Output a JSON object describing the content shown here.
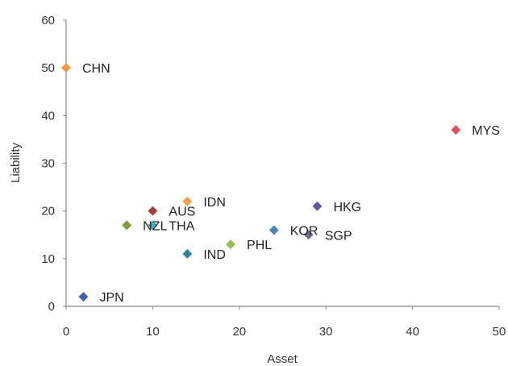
{
  "chart_data": {
    "type": "scatter",
    "title": "",
    "xlabel": "Asset",
    "ylabel": "Liability",
    "xlim": [
      0,
      50
    ],
    "ylim": [
      0,
      60
    ],
    "xticks": [
      0,
      10,
      20,
      30,
      40,
      50
    ],
    "yticks": [
      0,
      10,
      20,
      30,
      40,
      50,
      60
    ],
    "grid": false,
    "legend": "none",
    "points": [
      {
        "label": "CHN",
        "x": 0,
        "y": 50,
        "color": "#F79646"
      },
      {
        "label": "MYS",
        "x": 45,
        "y": 37,
        "color": "#D9505F"
      },
      {
        "label": "IDN",
        "x": 14,
        "y": 22,
        "color": "#F0A050"
      },
      {
        "label": "HKG",
        "x": 29,
        "y": 21,
        "color": "#5E5A8C"
      },
      {
        "label": "AUS",
        "x": 10,
        "y": 20,
        "color": "#A0433F"
      },
      {
        "label": "NZL",
        "x": 7,
        "y": 17,
        "color": "#7F9A3F"
      },
      {
        "label": "THA",
        "x": 10,
        "y": 17,
        "color": "#4BACC6"
      },
      {
        "label": "KOR",
        "x": 24,
        "y": 16,
        "color": "#4F81BD"
      },
      {
        "label": "SGP",
        "x": 28,
        "y": 15,
        "color": "#6F6F8F"
      },
      {
        "label": "PHL",
        "x": 19,
        "y": 13,
        "color": "#9BBB59"
      },
      {
        "label": "IND",
        "x": 14,
        "y": 11,
        "color": "#31849B"
      },
      {
        "label": "JPN",
        "x": 2,
        "y": 2,
        "color": "#3F63A6"
      }
    ]
  }
}
